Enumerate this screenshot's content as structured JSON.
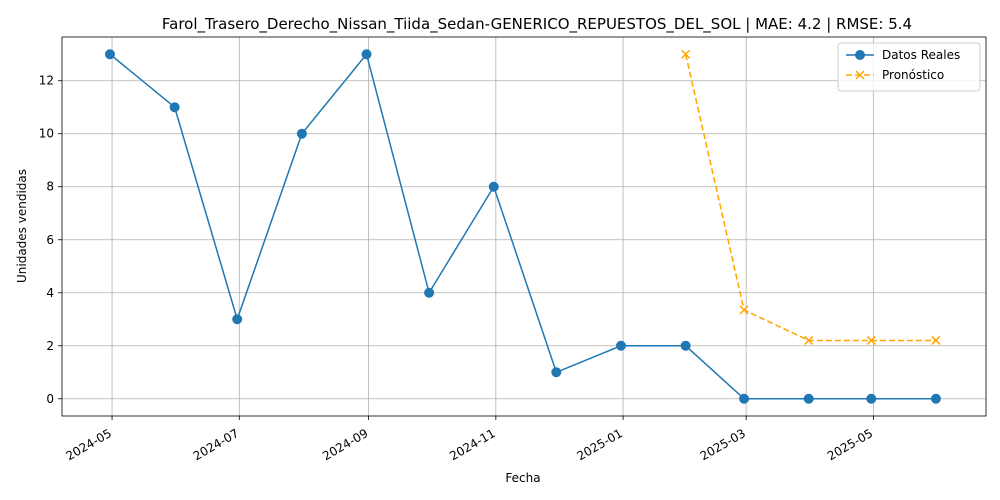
{
  "chart_data": {
    "type": "line",
    "title": "Farol_Trasero_Derecho_Nissan_Tiida_Sedan-GENERICO_REPUESTOS_DEL_SOL | MAE: 4.2 | RMSE: 5.4",
    "xlabel": "Fecha",
    "ylabel": "Unidades vendidas",
    "x_tick_labels": [
      "2024-05",
      "2024-07",
      "2024-09",
      "2024-11",
      "2025-01",
      "2025-03",
      "2025-05"
    ],
    "x_tick_dates": [
      "2024-05-01",
      "2024-07-01",
      "2024-09-01",
      "2024-11-01",
      "2025-01-01",
      "2025-03-01",
      "2025-05-01"
    ],
    "y_ticks": [
      0,
      2,
      4,
      6,
      8,
      10,
      12
    ],
    "xlim": [
      "2024-04-07",
      "2025-06-24"
    ],
    "ylim": [
      -0.65,
      13.65
    ],
    "grid": true,
    "legend_position": "top-right",
    "series": [
      {
        "name": "Datos Reales",
        "color": "#1f77b4",
        "marker": "circle",
        "line_style": "solid",
        "points": [
          {
            "x": "2024-04-30",
            "y": 13
          },
          {
            "x": "2024-05-31",
            "y": 11
          },
          {
            "x": "2024-06-30",
            "y": 3
          },
          {
            "x": "2024-07-31",
            "y": 10
          },
          {
            "x": "2024-08-31",
            "y": 13
          },
          {
            "x": "2024-09-30",
            "y": 4
          },
          {
            "x": "2024-10-31",
            "y": 8
          },
          {
            "x": "2024-11-30",
            "y": 1
          },
          {
            "x": "2024-12-31",
            "y": 2
          },
          {
            "x": "2025-01-31",
            "y": 2
          },
          {
            "x": "2025-02-28",
            "y": 0
          },
          {
            "x": "2025-03-31",
            "y": 0
          },
          {
            "x": "2025-04-30",
            "y": 0
          },
          {
            "x": "2025-05-31",
            "y": 0
          }
        ]
      },
      {
        "name": "Pronóstico",
        "color": "#ffa500",
        "marker": "x",
        "line_style": "dashed",
        "points": [
          {
            "x": "2025-01-31",
            "y": 13
          },
          {
            "x": "2025-02-28",
            "y": 3.35
          },
          {
            "x": "2025-03-31",
            "y": 2.2
          },
          {
            "x": "2025-04-30",
            "y": 2.2
          },
          {
            "x": "2025-05-31",
            "y": 2.2
          }
        ]
      }
    ]
  }
}
